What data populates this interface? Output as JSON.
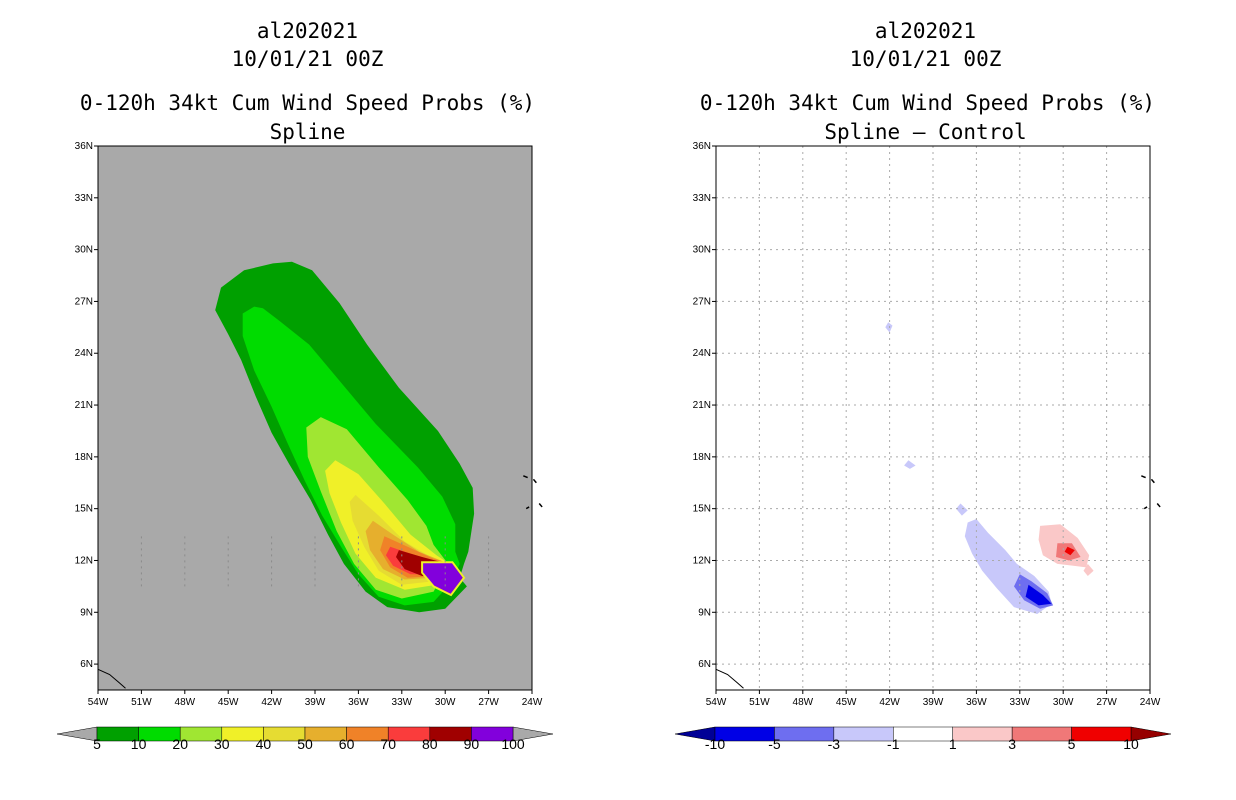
{
  "panels": [
    {
      "storm_id": "al202021",
      "datetime": "10/01/21 00Z",
      "product": "0-120h 34kt Cum Wind Speed Probs (%)",
      "subtitle": "Spline",
      "background": "#a9a9a9"
    },
    {
      "storm_id": "al202021",
      "datetime": "10/01/21 00Z",
      "product": "0-120h 34kt Cum Wind Speed Probs (%)",
      "subtitle": "Spline – Control",
      "background": "#ffffff"
    }
  ],
  "chart_data": [
    {
      "type": "contour_map",
      "title": "0-120h 34kt Cum Wind Speed Probs (%) Spline",
      "x_ticks": [
        "54W",
        "51W",
        "48W",
        "45W",
        "42W",
        "39W",
        "36W",
        "33W",
        "30W",
        "27W",
        "24W"
      ],
      "y_ticks": [
        "6N",
        "9N",
        "12N",
        "15N",
        "18N",
        "21N",
        "24N",
        "27N",
        "30N",
        "33N",
        "36N"
      ],
      "x_range": [
        -54,
        -24
      ],
      "y_range": [
        4.5,
        36
      ],
      "colorbar": {
        "labels": [
          "5",
          "10",
          "20",
          "30",
          "40",
          "50",
          "60",
          "70",
          "80",
          "90",
          "100"
        ],
        "colors": [
          "#00a000",
          "#00dc00",
          "#a0e632",
          "#f0f028",
          "#e6dc32",
          "#e6af2d",
          "#f08228",
          "#fa3c3c",
          "#a00000",
          "#8200dc"
        ],
        "under_color": "#a9a9a9",
        "over_color": "#a9a9a9"
      },
      "contours": [
        {
          "level": 5,
          "color": "#00a000",
          "points": [
            [
              -40.6,
              29.3
            ],
            [
              -39.2,
              28.8
            ],
            [
              -37.3,
              26.9
            ],
            [
              -35.4,
              24.5
            ],
            [
              -33.2,
              22.0
            ],
            [
              -30.5,
              19.5
            ],
            [
              -29.0,
              17.6
            ],
            [
              -28.1,
              16.2
            ],
            [
              -28.0,
              14.7
            ],
            [
              -28.4,
              12.5
            ],
            [
              -28.7,
              11.8
            ],
            [
              -29.0,
              11.0
            ],
            [
              -28.5,
              10.5
            ],
            [
              -30.0,
              9.2
            ],
            [
              -31.8,
              9.0
            ],
            [
              -34.0,
              9.3
            ],
            [
              -35.5,
              10.2
            ],
            [
              -37.0,
              11.8
            ],
            [
              -38.1,
              13.5
            ],
            [
              -39.3,
              15.5
            ],
            [
              -40.8,
              17.6
            ],
            [
              -42.0,
              19.4
            ],
            [
              -43.1,
              21.5
            ],
            [
              -44.1,
              23.6
            ],
            [
              -45.0,
              25.1
            ],
            [
              -45.9,
              26.5
            ],
            [
              -45.5,
              27.8
            ],
            [
              -43.9,
              28.8
            ],
            [
              -41.9,
              29.2
            ]
          ]
        },
        {
          "level": 10,
          "color": "#00dc00",
          "points": [
            [
              -42.6,
              26.6
            ],
            [
              -41.5,
              25.9
            ],
            [
              -39.4,
              24.5
            ],
            [
              -37.3,
              22.4
            ],
            [
              -34.8,
              19.9
            ],
            [
              -31.9,
              17.4
            ],
            [
              -30.2,
              15.7
            ],
            [
              -29.3,
              14.1
            ],
            [
              -29.3,
              12.5
            ],
            [
              -29.0,
              11.8
            ],
            [
              -29.5,
              10.8
            ],
            [
              -30.8,
              9.6
            ],
            [
              -32.8,
              9.4
            ],
            [
              -34.6,
              9.9
            ],
            [
              -36.0,
              11.2
            ],
            [
              -37.2,
              12.8
            ],
            [
              -38.5,
              14.6
            ],
            [
              -39.7,
              16.6
            ],
            [
              -40.9,
              18.8
            ],
            [
              -42.0,
              20.9
            ],
            [
              -43.2,
              23.0
            ],
            [
              -44.0,
              25.0
            ],
            [
              -44.0,
              26.3
            ],
            [
              -43.2,
              26.7
            ]
          ]
        },
        {
          "level": 20,
          "color": "#a0e632",
          "points": [
            [
              -38.6,
              20.3
            ],
            [
              -36.8,
              19.6
            ],
            [
              -34.6,
              17.4
            ],
            [
              -32.6,
              15.5
            ],
            [
              -31.3,
              14.0
            ],
            [
              -30.8,
              12.9
            ],
            [
              -29.8,
              11.8
            ],
            [
              -30.8,
              10.2
            ],
            [
              -33.0,
              9.8
            ],
            [
              -34.8,
              10.3
            ],
            [
              -36.3,
              11.8
            ],
            [
              -37.5,
              13.7
            ],
            [
              -38.6,
              16.0
            ],
            [
              -39.5,
              18.0
            ],
            [
              -39.6,
              19.7
            ]
          ]
        },
        {
          "level": 30,
          "color": "#f0f028",
          "points": [
            [
              -37.6,
              17.8
            ],
            [
              -36.0,
              17.0
            ],
            [
              -34.2,
              15.3
            ],
            [
              -32.4,
              13.5
            ],
            [
              -30.6,
              12.3
            ],
            [
              -29.7,
              11.8
            ],
            [
              -30.6,
              10.6
            ],
            [
              -32.8,
              10.3
            ],
            [
              -34.8,
              11.0
            ],
            [
              -36.2,
              12.4
            ],
            [
              -37.2,
              14.2
            ],
            [
              -38.0,
              15.9
            ],
            [
              -38.3,
              17.2
            ]
          ]
        },
        {
          "level": 40,
          "color": "#e6dc32",
          "points": [
            [
              -36.2,
              15.8
            ],
            [
              -34.6,
              14.6
            ],
            [
              -32.8,
              13.1
            ],
            [
              -30.8,
              12.1
            ],
            [
              -29.8,
              11.8
            ],
            [
              -30.8,
              10.8
            ],
            [
              -33.0,
              10.6
            ],
            [
              -34.6,
              11.4
            ],
            [
              -35.6,
              12.8
            ],
            [
              -36.4,
              14.3
            ],
            [
              -36.6,
              15.4
            ]
          ]
        },
        {
          "level": 50,
          "color": "#e6af2d",
          "points": [
            [
              -35.0,
              14.3
            ],
            [
              -33.6,
              13.5
            ],
            [
              -31.8,
              12.5
            ],
            [
              -30.0,
              11.9
            ],
            [
              -29.6,
              11.8
            ],
            [
              -30.8,
              11.0
            ],
            [
              -32.8,
              10.9
            ],
            [
              -34.3,
              11.5
            ],
            [
              -35.2,
              12.6
            ],
            [
              -35.5,
              13.7
            ]
          ]
        },
        {
          "level": 60,
          "color": "#f08228",
          "points": [
            [
              -34.2,
              13.4
            ],
            [
              -32.6,
              12.8
            ],
            [
              -30.8,
              12.1
            ],
            [
              -29.6,
              11.8
            ],
            [
              -30.6,
              11.1
            ],
            [
              -32.6,
              11.0
            ],
            [
              -33.8,
              11.6
            ],
            [
              -34.5,
              12.6
            ]
          ]
        },
        {
          "level": 70,
          "color": "#fa3c3c",
          "points": [
            [
              -33.8,
              12.8
            ],
            [
              -32.4,
              12.4
            ],
            [
              -30.8,
              12.0
            ],
            [
              -29.6,
              11.8
            ],
            [
              -30.6,
              11.2
            ],
            [
              -32.4,
              11.2
            ],
            [
              -33.6,
              11.7
            ],
            [
              -34.1,
              12.3
            ]
          ]
        },
        {
          "level": 80,
          "color": "#a00000",
          "points": [
            [
              -33.2,
              12.6
            ],
            [
              -31.6,
              12.2
            ],
            [
              -29.8,
              11.8
            ],
            [
              -29.8,
              11.1
            ],
            [
              -31.6,
              11.1
            ],
            [
              -32.8,
              11.5
            ],
            [
              -33.4,
              12.2
            ]
          ]
        },
        {
          "level": 90,
          "color": "#8200dc",
          "points": [
            [
              -31.6,
              11.9
            ],
            [
              -29.5,
              11.9
            ],
            [
              -28.7,
              11.0
            ],
            [
              -29.6,
              10.0
            ],
            [
              -30.8,
              10.5
            ],
            [
              -31.6,
              11.3
            ]
          ]
        }
      ]
    },
    {
      "type": "contour_map",
      "title": "0-120h 34kt Cum Wind Speed Probs (%) Spline – Control",
      "x_ticks": [
        "54W",
        "51W",
        "48W",
        "45W",
        "42W",
        "39W",
        "36W",
        "33W",
        "30W",
        "27W",
        "24W"
      ],
      "y_ticks": [
        "6N",
        "9N",
        "12N",
        "15N",
        "18N",
        "21N",
        "24N",
        "27N",
        "30N",
        "33N",
        "36N"
      ],
      "x_range": [
        -54,
        -24
      ],
      "y_range": [
        4.5,
        36
      ],
      "grid": true,
      "colorbar": {
        "labels": [
          "-10",
          "-5",
          "-3",
          "-1",
          "1",
          "3",
          "5",
          "10"
        ],
        "colors": [
          "#0000e6",
          "#6e6ef0",
          "#c8c8fa",
          "#ffffff",
          "#fac8c8",
          "#f07878",
          "#f00000"
        ],
        "under_color": "#000096",
        "over_color": "#960000"
      },
      "contours": [
        {
          "level": -1,
          "color": "#c8c8fa",
          "points": [
            [
              -36.0,
              14.4
            ],
            [
              -35.2,
              13.6
            ],
            [
              -34.0,
              12.6
            ],
            [
              -33.2,
              11.8
            ],
            [
              -32.0,
              11.1
            ],
            [
              -31.0,
              10.2
            ],
            [
              -30.8,
              9.5
            ],
            [
              -31.8,
              8.9
            ],
            [
              -33.4,
              9.3
            ],
            [
              -34.6,
              10.4
            ],
            [
              -35.6,
              11.4
            ],
            [
              -36.3,
              12.4
            ],
            [
              -36.8,
              13.4
            ],
            [
              -36.6,
              14.2
            ]
          ]
        },
        {
          "level": -3,
          "color": "#6e6ef0",
          "points": [
            [
              -33.0,
              11.2
            ],
            [
              -32.2,
              10.8
            ],
            [
              -31.1,
              10.1
            ],
            [
              -30.7,
              9.4
            ],
            [
              -31.6,
              9.2
            ],
            [
              -32.7,
              9.7
            ],
            [
              -33.4,
              10.5
            ]
          ]
        },
        {
          "level": -5,
          "color": "#0000e6",
          "points": [
            [
              -32.4,
              10.6
            ],
            [
              -31.4,
              10.0
            ],
            [
              -30.8,
              9.5
            ],
            [
              -31.7,
              9.4
            ],
            [
              -32.6,
              9.9
            ]
          ]
        },
        {
          "level": 1,
          "color": "#fac8c8",
          "points": [
            [
              -31.6,
              14.0
            ],
            [
              -30.2,
              14.1
            ],
            [
              -29.0,
              13.3
            ],
            [
              -28.2,
              12.3
            ],
            [
              -28.4,
              11.6
            ],
            [
              -29.3,
              11.7
            ],
            [
              -30.4,
              11.8
            ],
            [
              -31.4,
              12.3
            ],
            [
              -31.7,
              13.2
            ]
          ]
        },
        {
          "level": 3,
          "color": "#f07878",
          "points": [
            [
              -30.4,
              13.0
            ],
            [
              -29.4,
              13.0
            ],
            [
              -28.8,
              12.2
            ],
            [
              -29.6,
              12.0
            ],
            [
              -30.5,
              12.2
            ]
          ]
        },
        {
          "level": 5,
          "color": "#f00000",
          "points": [
            [
              -29.7,
              12.8
            ],
            [
              -29.2,
              12.6
            ],
            [
              -29.5,
              12.3
            ],
            [
              -29.9,
              12.5
            ]
          ]
        },
        {
          "level": -1,
          "color": "#c8c8fa",
          "points": [
            [
              -42.1,
              25.8
            ],
            [
              -41.8,
              25.6
            ],
            [
              -42.0,
              25.2
            ],
            [
              -42.3,
              25.5
            ]
          ]
        },
        {
          "level": -1,
          "color": "#c8c8fa",
          "points": [
            [
              -40.7,
              17.8
            ],
            [
              -40.2,
              17.5
            ],
            [
              -40.6,
              17.3
            ],
            [
              -41.0,
              17.5
            ]
          ]
        },
        {
          "level": -1,
          "color": "#c8c8fa",
          "points": [
            [
              -37.1,
              15.3
            ],
            [
              -36.6,
              14.9
            ],
            [
              -37.0,
              14.6
            ],
            [
              -37.4,
              15.0
            ]
          ]
        },
        {
          "level": 1,
          "color": "#fac8c8",
          "points": [
            [
              -28.3,
              11.8
            ],
            [
              -27.9,
              11.4
            ],
            [
              -28.3,
              11.1
            ],
            [
              -28.6,
              11.4
            ]
          ]
        }
      ]
    }
  ]
}
